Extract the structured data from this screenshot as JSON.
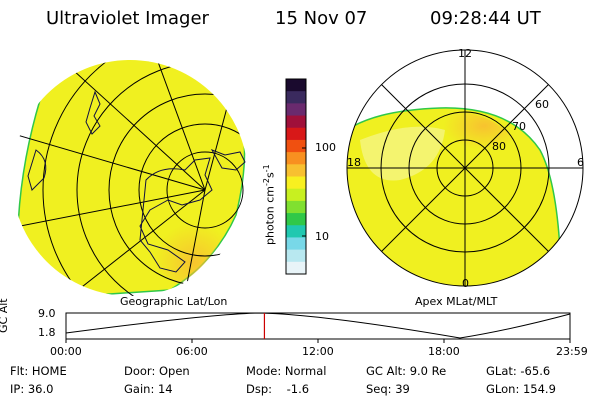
{
  "header": {
    "title": "Ultraviolet Imager",
    "date": "15 Nov 07",
    "time": "09:28:44 UT"
  },
  "colorbar": {
    "unit_label": "photon cm",
    "unit_sup1": "-2",
    "unit_s": "s",
    "unit_sup2": "-1",
    "ticks": [
      "100",
      "10"
    ],
    "colors": [
      "#1a0a2e",
      "#3a2a5e",
      "#6a2a6e",
      "#a0103a",
      "#d81818",
      "#f05010",
      "#f89020",
      "#f8c030",
      "#f8f020",
      "#c8f020",
      "#80e030",
      "#30c848",
      "#20c8b0",
      "#78d8e8",
      "#b8e8f0",
      "#e8f4f8"
    ]
  },
  "left_map": {
    "caption": "Geographic Lat/Lon",
    "fill_color": "#f0f020",
    "hot_color": "#f8c030"
  },
  "right_map": {
    "caption": "Apex MLat/MLT",
    "mlt_labels": {
      "top": "12",
      "bottom": "0",
      "left": "18",
      "right": "6"
    },
    "lat_labels": [
      "60",
      "70",
      "80"
    ]
  },
  "timeline": {
    "ylabel": "GC Alt",
    "yticks": [
      "9.0",
      "1.8"
    ],
    "xticks": [
      "00:00",
      "06:00",
      "12:00",
      "18:00",
      "23:59"
    ],
    "current_time_fraction": 0.3937,
    "marker_color": "#cc0000"
  },
  "status": {
    "row1": [
      {
        "k": "Flt: ",
        "v": "HOME"
      },
      {
        "k": "Door: ",
        "v": "Open"
      },
      {
        "k": "Mode: ",
        "v": "Normal"
      },
      {
        "k": "GC Alt: ",
        "v": "9.0 Re"
      },
      {
        "k": "GLat: ",
        "v": "-65.6"
      }
    ],
    "row2": [
      {
        "k": "IP: ",
        "v": "36.0"
      },
      {
        "k": "Gain: ",
        "v": "14"
      },
      {
        "k": "Dsp: ",
        "v": "   -1.6"
      },
      {
        "k": "Seq: ",
        "v": "39"
      },
      {
        "k": "GLon: ",
        "v": "154.9"
      }
    ]
  }
}
